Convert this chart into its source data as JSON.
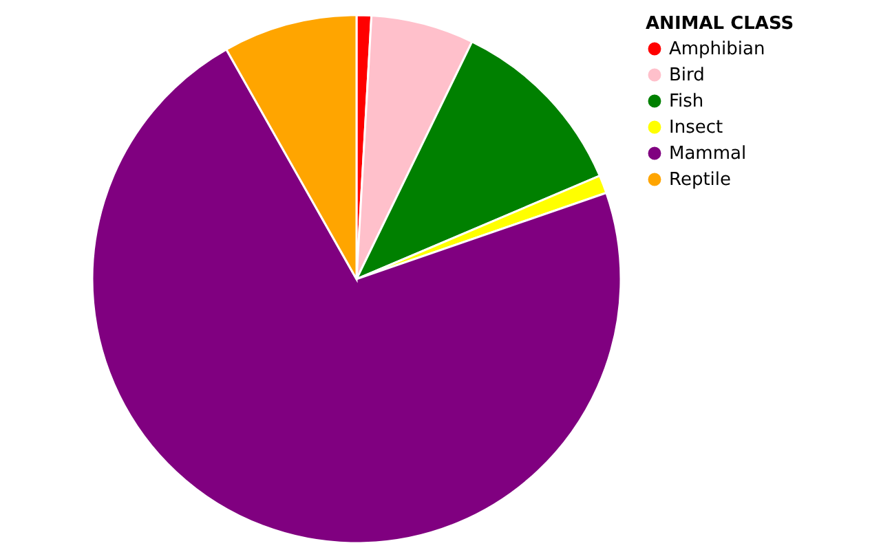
{
  "chart_data": {
    "type": "pie",
    "legend_title": "ANIMAL CLASS",
    "categories": [
      "Amphibian",
      "Bird",
      "Fish",
      "Insect",
      "Mammal",
      "Reptile"
    ],
    "values": [
      0.9,
      6.3,
      11.4,
      1.1,
      72.1,
      8.2
    ],
    "colors": [
      "#ff0000",
      "#ffc0cb",
      "#008000",
      "#ffff00",
      "#800080",
      "#ffa500"
    ],
    "legend": "top right"
  }
}
